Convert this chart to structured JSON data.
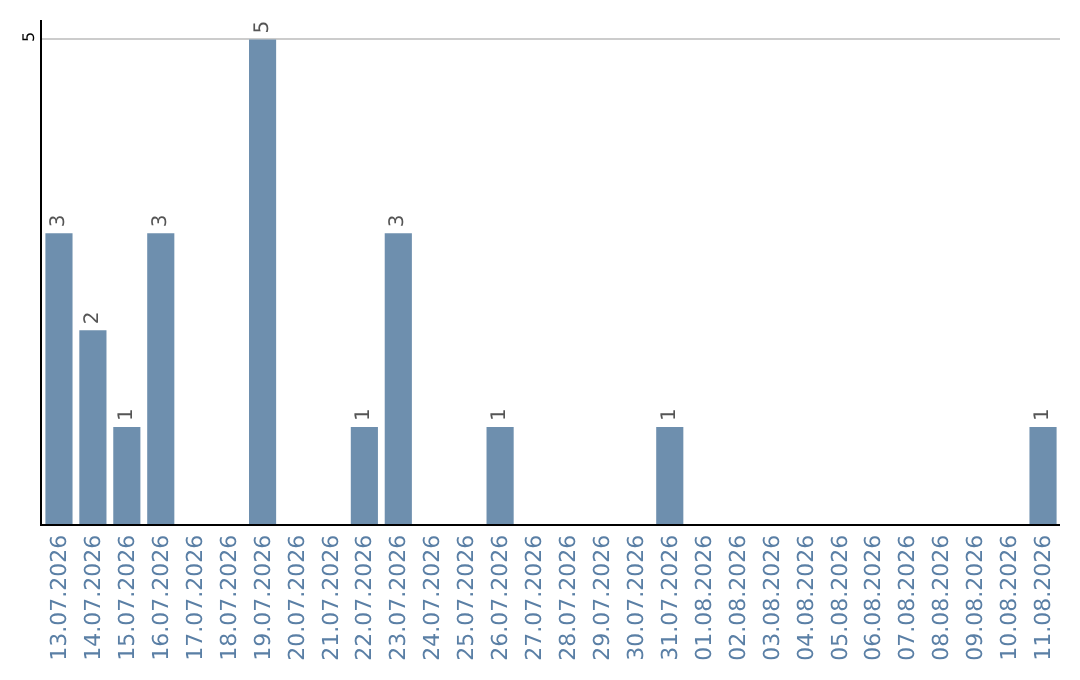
{
  "chart_data": {
    "type": "bar",
    "categories": [
      "13.07.2026",
      "14.07.2026",
      "15.07.2026",
      "16.07.2026",
      "17.07.2026",
      "18.07.2026",
      "19.07.2026",
      "20.07.2026",
      "21.07.2026",
      "22.07.2026",
      "23.07.2026",
      "24.07.2026",
      "25.07.2026",
      "26.07.2026",
      "27.07.2026",
      "28.07.2026",
      "29.07.2026",
      "30.07.2026",
      "31.07.2026",
      "01.08.2026",
      "02.08.2026",
      "03.08.2026",
      "04.08.2026",
      "05.08.2026",
      "06.08.2026",
      "07.08.2026",
      "08.08.2026",
      "09.08.2026",
      "10.08.2026",
      "11.08.2026"
    ],
    "values": [
      3,
      2,
      1,
      3,
      0,
      0,
      5,
      0,
      0,
      1,
      3,
      0,
      0,
      1,
      0,
      0,
      0,
      0,
      1,
      0,
      0,
      0,
      0,
      0,
      0,
      0,
      0,
      0,
      0,
      1
    ],
    "value_labels": [
      "3",
      "2",
      "1",
      "3",
      null,
      null,
      "5",
      null,
      null,
      "1",
      "3",
      null,
      null,
      "1",
      null,
      null,
      null,
      null,
      "1",
      null,
      null,
      null,
      null,
      null,
      null,
      null,
      null,
      null,
      null,
      "1"
    ],
    "color": "#6e8fae",
    "ylim": [
      0,
      5.2
    ],
    "yticks": [
      5
    ],
    "grid": "y",
    "legend": false
  }
}
